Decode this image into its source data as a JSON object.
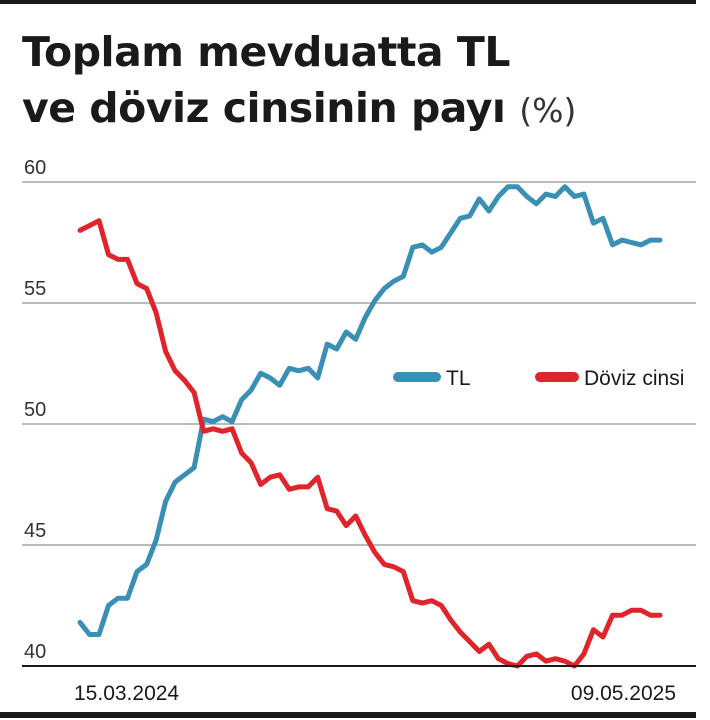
{
  "title": {
    "line1": "Toplam mevduatta TL",
    "line2": "ve döviz cinsinin payı",
    "unit": "(%)"
  },
  "chart_data": {
    "type": "line",
    "title": "Toplam mevduatta TL ve döviz cinsinin payı (%)",
    "xlabel": "",
    "ylabel": "",
    "ylim": [
      40,
      60
    ],
    "yticks": [
      "60",
      "55",
      "50",
      "45",
      "40"
    ],
    "x_start_label": "15.03.2024",
    "x_end_label": "09.05.2025",
    "grid": true,
    "legend_position": "right-middle",
    "series": [
      {
        "name": "TL",
        "color": "#3a8fb5",
        "values": [
          41.8,
          41.3,
          41.3,
          42.5,
          42.8,
          42.8,
          43.9,
          44.2,
          45.2,
          46.8,
          47.6,
          47.9,
          48.2,
          50.2,
          50.1,
          50.3,
          50.1,
          51.0,
          51.4,
          52.1,
          51.9,
          51.6,
          52.3,
          52.2,
          52.3,
          51.9,
          53.3,
          53.1,
          53.8,
          53.5,
          54.4,
          55.1,
          55.6,
          55.9,
          56.1,
          57.3,
          57.4,
          57.1,
          57.3,
          57.9,
          58.5,
          58.6,
          59.3,
          58.8,
          59.4,
          59.8,
          59.8,
          59.4,
          59.1,
          59.5,
          59.4,
          59.8,
          59.4,
          59.5,
          58.3,
          58.5,
          57.4,
          57.6,
          57.5,
          57.4,
          57.6,
          57.6
        ]
      },
      {
        "name": "Döviz cinsi",
        "color": "#e0242b",
        "values": [
          58.0,
          58.2,
          58.4,
          57.0,
          56.8,
          56.8,
          55.8,
          55.6,
          54.6,
          53.0,
          52.2,
          51.8,
          51.3,
          49.7,
          49.8,
          49.7,
          49.8,
          48.8,
          48.4,
          47.5,
          47.8,
          47.9,
          47.3,
          47.4,
          47.4,
          47.8,
          46.5,
          46.4,
          45.8,
          46.2,
          45.4,
          44.7,
          44.2,
          44.1,
          43.9,
          42.7,
          42.6,
          42.7,
          42.5,
          41.9,
          41.4,
          41.0,
          40.6,
          40.9,
          40.3,
          40.1,
          40.0,
          40.4,
          40.5,
          40.2,
          40.3,
          40.2,
          40.0,
          40.5,
          41.5,
          41.2,
          42.1,
          42.1,
          42.3,
          42.3,
          42.1,
          42.1
        ]
      }
    ]
  }
}
